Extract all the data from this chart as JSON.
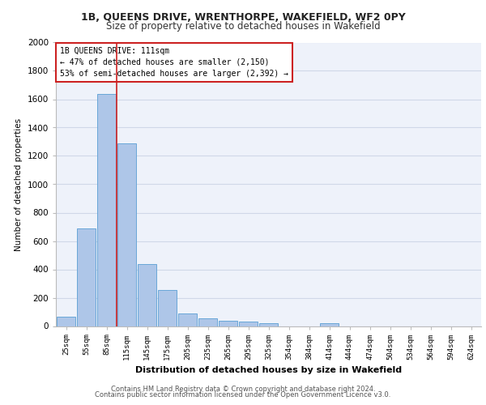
{
  "title_line1": "1B, QUEENS DRIVE, WRENTHORPE, WAKEFIELD, WF2 0PY",
  "title_line2": "Size of property relative to detached houses in Wakefield",
  "xlabel": "Distribution of detached houses by size in Wakefield",
  "ylabel": "Number of detached properties",
  "categories": [
    "25sqm",
    "55sqm",
    "85sqm",
    "115sqm",
    "145sqm",
    "175sqm",
    "205sqm",
    "235sqm",
    "265sqm",
    "295sqm",
    "325sqm",
    "354sqm",
    "384sqm",
    "414sqm",
    "444sqm",
    "474sqm",
    "504sqm",
    "534sqm",
    "564sqm",
    "594sqm",
    "624sqm"
  ],
  "values": [
    65,
    690,
    1640,
    1290,
    440,
    255,
    90,
    55,
    35,
    30,
    18,
    0,
    0,
    18,
    0,
    0,
    0,
    0,
    0,
    0,
    0
  ],
  "bar_color": "#aec6e8",
  "bar_edge_color": "#5a9fd4",
  "property_label": "1B QUEENS DRIVE: 111sqm",
  "pct_smaller": 47,
  "n_smaller": 2150,
  "pct_larger_semi": 53,
  "n_larger_semi": 2392,
  "vline_color": "#cc2222",
  "annotation_box_color": "#cc2222",
  "ylim": [
    0,
    2000
  ],
  "yticks": [
    0,
    200,
    400,
    600,
    800,
    1000,
    1200,
    1400,
    1600,
    1800,
    2000
  ],
  "grid_color": "#d0d8e8",
  "bg_color": "#eef2fa",
  "footer_line1": "Contains HM Land Registry data © Crown copyright and database right 2024.",
  "footer_line2": "Contains public sector information licensed under the Open Government Licence v3.0."
}
